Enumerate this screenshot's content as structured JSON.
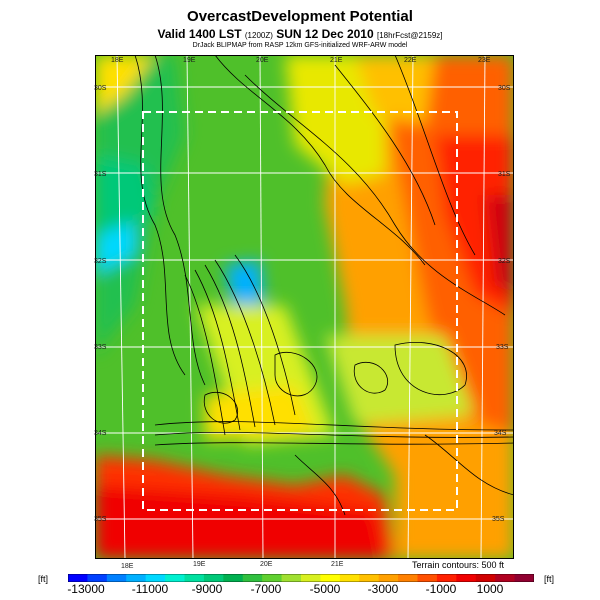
{
  "header": {
    "title": "OvercastDevelopment Potential",
    "subtitle_main": "Valid 1400 LST",
    "subtitle_code": "(1200Z)",
    "subtitle_date": "SUN 12 Dec 2010",
    "subtitle_fcst": "[18hrFcst@2159z]",
    "credit": "DrJack BLIPMAP from RASP 12km GFS-initialized WRF-ARW model"
  },
  "map": {
    "top_lon_labels": [
      "18E",
      "19E",
      "20E",
      "21E",
      "22E",
      "23E"
    ],
    "bottom_lon_labels": [
      "18E",
      "19E",
      "20E",
      "21E"
    ],
    "lat_labels_left": [
      "30S",
      "31S",
      "32S",
      "33S",
      "34S",
      "35S"
    ],
    "lat_labels_right": [
      "30S",
      "31S",
      "32S",
      "33S",
      "34S",
      "35S"
    ],
    "contour_note": "Terrain contours: 500 ft"
  },
  "colorbar": {
    "unit_left": "[ft]",
    "unit_right": "[ft]",
    "tick_labels": [
      "-13000",
      "-11000",
      "-9000",
      "-7000",
      "-5000",
      "-3000",
      "-1000",
      "1000"
    ],
    "colors": [
      "#0000ff",
      "#0040ff",
      "#0080ff",
      "#00b0ff",
      "#00d8ff",
      "#00f0d0",
      "#00e0a0",
      "#00c878",
      "#00b050",
      "#30c040",
      "#60d030",
      "#a0e030",
      "#d8f020",
      "#ffff00",
      "#ffe000",
      "#ffc000",
      "#ffa000",
      "#ff8000",
      "#ff5000",
      "#ff2000",
      "#f00000",
      "#d00000",
      "#b00020",
      "#900030"
    ]
  }
}
